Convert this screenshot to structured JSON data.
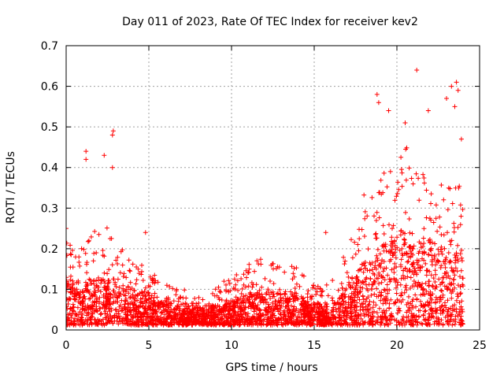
{
  "chart_data": {
    "type": "scatter",
    "title": "Day 011 of 2023, Rate Of TEC Index for receiver kev2",
    "xlabel": "GPS time / hours",
    "ylabel": "ROTI / TECUs",
    "xlim": [
      0,
      25
    ],
    "ylim": [
      0,
      0.7
    ],
    "x_ticks": [
      "0",
      "5",
      "10",
      "15",
      "20",
      "25"
    ],
    "y_ticks": [
      "0",
      "0.1",
      "0.2",
      "0.3",
      "0.4",
      "0.5",
      "0.6",
      "0.7"
    ],
    "grid": true,
    "marker": "+",
    "marker_color": "#ff0000",
    "profile": {
      "x": [
        0,
        0.5,
        1,
        1.5,
        2,
        2.5,
        3,
        3.5,
        4,
        4.5,
        5,
        5.5,
        6,
        6.5,
        7,
        7.5,
        8,
        8.5,
        9,
        9.5,
        10,
        10.5,
        11,
        11.5,
        12,
        12.5,
        13,
        13.5,
        14,
        14.5,
        15,
        15.5,
        16,
        16.5,
        17,
        17.5,
        18,
        18.5,
        19,
        19.5,
        20,
        20.5,
        21,
        21.5,
        22,
        22.5,
        23,
        23.5,
        24
      ],
      "typical_y": [
        0.08,
        0.07,
        0.07,
        0.08,
        0.07,
        0.07,
        0.07,
        0.06,
        0.06,
        0.05,
        0.05,
        0.04,
        0.04,
        0.03,
        0.03,
        0.03,
        0.03,
        0.03,
        0.03,
        0.03,
        0.04,
        0.04,
        0.05,
        0.05,
        0.05,
        0.05,
        0.05,
        0.05,
        0.05,
        0.04,
        0.04,
        0.03,
        0.03,
        0.04,
        0.06,
        0.08,
        0.1,
        0.11,
        0.12,
        0.13,
        0.14,
        0.15,
        0.14,
        0.13,
        0.13,
        0.12,
        0.12,
        0.12,
        0.12
      ],
      "upper_y": [
        0.22,
        0.18,
        0.2,
        0.22,
        0.25,
        0.24,
        0.25,
        0.2,
        0.18,
        0.15,
        0.13,
        0.12,
        0.1,
        0.09,
        0.09,
        0.08,
        0.08,
        0.08,
        0.09,
        0.11,
        0.13,
        0.14,
        0.15,
        0.16,
        0.17,
        0.16,
        0.15,
        0.15,
        0.14,
        0.12,
        0.1,
        0.09,
        0.13,
        0.14,
        0.2,
        0.27,
        0.33,
        0.36,
        0.38,
        0.38,
        0.42,
        0.45,
        0.43,
        0.38,
        0.36,
        0.35,
        0.34,
        0.38,
        0.35
      ]
    },
    "outliers": [
      {
        "x": 0.0,
        "y": 0.25
      },
      {
        "x": 1.2,
        "y": 0.44
      },
      {
        "x": 1.2,
        "y": 0.42
      },
      {
        "x": 2.3,
        "y": 0.43
      },
      {
        "x": 2.8,
        "y": 0.48
      },
      {
        "x": 2.85,
        "y": 0.49
      },
      {
        "x": 2.8,
        "y": 0.4
      },
      {
        "x": 4.8,
        "y": 0.24
      },
      {
        "x": 15.7,
        "y": 0.24
      },
      {
        "x": 18.8,
        "y": 0.58
      },
      {
        "x": 18.9,
        "y": 0.56
      },
      {
        "x": 19.5,
        "y": 0.54
      },
      {
        "x": 20.5,
        "y": 0.51
      },
      {
        "x": 21.2,
        "y": 0.64
      },
      {
        "x": 21.9,
        "y": 0.54
      },
      {
        "x": 23.0,
        "y": 0.57
      },
      {
        "x": 23.3,
        "y": 0.6
      },
      {
        "x": 23.6,
        "y": 0.61
      },
      {
        "x": 23.7,
        "y": 0.59
      },
      {
        "x": 23.5,
        "y": 0.55
      },
      {
        "x": 23.9,
        "y": 0.47
      }
    ]
  }
}
